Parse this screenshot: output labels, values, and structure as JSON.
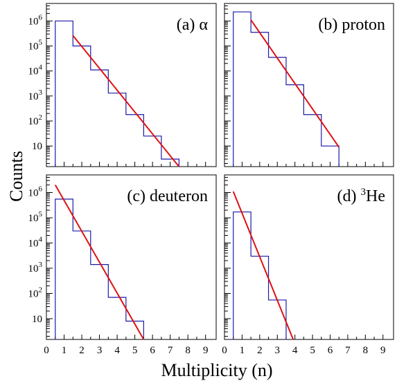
{
  "chart_data": {
    "type": "histogram",
    "xlabel": "Multiplicity (n)",
    "ylabel": "Counts",
    "x_ticks": [
      "0",
      "1",
      "2",
      "3",
      "4",
      "5",
      "6",
      "7",
      "8",
      "9"
    ],
    "xlim": [
      0,
      9.6
    ],
    "y_scale": "log",
    "ylim": [
      1.5,
      5000000
    ],
    "y_ticks": [
      {
        "value": 10,
        "base": "10",
        "exp": ""
      },
      {
        "value": 100,
        "base": "10",
        "exp": "2"
      },
      {
        "value": 1000,
        "base": "10",
        "exp": "3"
      },
      {
        "value": 10000,
        "base": "10",
        "exp": "4"
      },
      {
        "value": 100000,
        "base": "10",
        "exp": "5"
      },
      {
        "value": 1000000,
        "base": "10",
        "exp": "6"
      }
    ],
    "panels": [
      {
        "label": "(a) α",
        "bins": [
          {
            "n": 1,
            "count": 1000000
          },
          {
            "n": 2,
            "count": 100000
          },
          {
            "n": 3,
            "count": 11000
          },
          {
            "n": 4,
            "count": 1300
          },
          {
            "n": 5,
            "count": 180
          },
          {
            "n": 6,
            "count": 25
          },
          {
            "n": 7,
            "count": 3
          }
        ],
        "fit": {
          "x": [
            1.5,
            7.5
          ],
          "y": [
            260000,
            1.5
          ]
        }
      },
      {
        "label": "(b) proton",
        "bins": [
          {
            "n": 1,
            "count": 2300000
          },
          {
            "n": 2,
            "count": 350000
          },
          {
            "n": 3,
            "count": 35000
          },
          {
            "n": 4,
            "count": 2800
          },
          {
            "n": 5,
            "count": 180
          },
          {
            "n": 6,
            "count": 10
          }
        ],
        "fit": {
          "x": [
            1.5,
            6.5
          ],
          "y": [
            1100000,
            9
          ]
        }
      },
      {
        "label": "(c) deuteron",
        "bins": [
          {
            "n": 1,
            "count": 550000
          },
          {
            "n": 2,
            "count": 30000
          },
          {
            "n": 3,
            "count": 1400
          },
          {
            "n": 4,
            "count": 70
          },
          {
            "n": 5,
            "count": 8
          }
        ],
        "fit": {
          "x": [
            0.5,
            5.5
          ],
          "y": [
            2000000,
            1.5
          ]
        }
      },
      {
        "label": "(d) ",
        "label_sup": "3",
        "label_tail": "He",
        "bins": [
          {
            "n": 1,
            "count": 170000
          },
          {
            "n": 2,
            "count": 3000
          },
          {
            "n": 3,
            "count": 55
          }
        ],
        "fit": {
          "x": [
            0.5,
            3.9
          ],
          "y": [
            1100000,
            1.5
          ]
        }
      }
    ]
  }
}
